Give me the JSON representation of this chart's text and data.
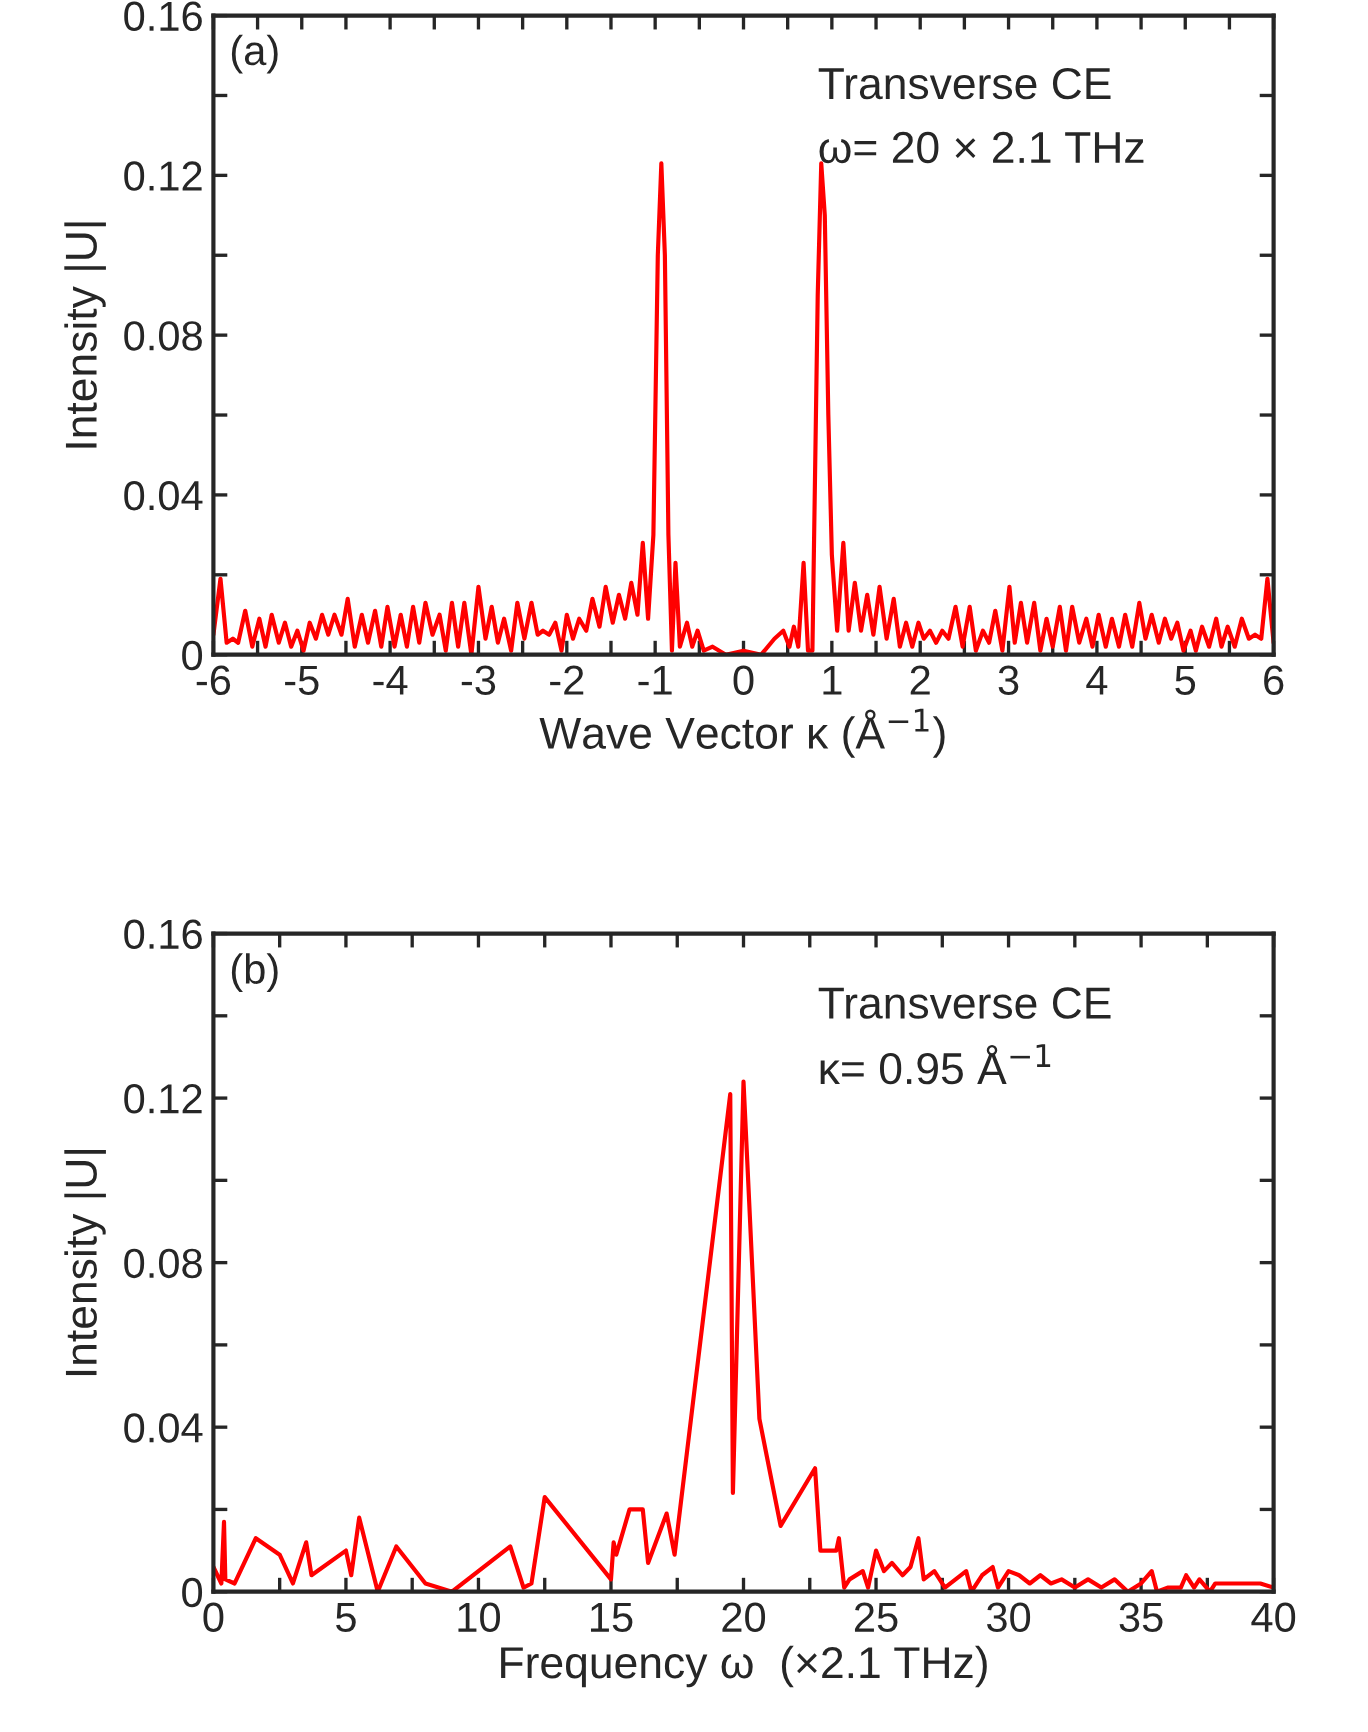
{
  "chart_data": [
    {
      "type": "line",
      "xlabel": "Wave Vector κ (Å$^{−1}$)",
      "ylabel": "Intensity |U|",
      "annotations": [
        "(a)",
        "Transverse CE",
        "ω= 20 × 2.1 THz"
      ],
      "xlim": [
        -6,
        6
      ],
      "ylim": [
        0,
        0.16
      ],
      "xticks": [
        -6,
        {
          "value": -5.5,
          "label": null
        },
        -5,
        {
          "value": -4.5,
          "label": null
        },
        -4,
        {
          "value": -3.5,
          "label": null
        },
        -3,
        {
          "value": -2.5,
          "label": null
        },
        -2,
        {
          "value": -1.5,
          "label": null
        },
        -1,
        {
          "value": -0.5,
          "label": null
        },
        0,
        {
          "value": 0.5,
          "label": null
        },
        1,
        {
          "value": 1.5,
          "label": null
        },
        2,
        {
          "value": 2.5,
          "label": null
        },
        3,
        {
          "value": 3.5,
          "label": null
        },
        4,
        {
          "value": 4.5,
          "label": null
        },
        5,
        {
          "value": 5.5,
          "label": null
        },
        6
      ],
      "yticks": [
        0,
        {
          "value": 0.02,
          "label": null
        },
        0.04,
        {
          "value": 0.06,
          "label": null
        },
        0.08,
        {
          "value": 0.1,
          "label": null
        },
        0.12,
        {
          "value": 0.14,
          "label": null
        },
        0.16
      ],
      "grid": false,
      "legend": false,
      "marker": "none",
      "line_style": "solid",
      "series": [
        {
          "color": "#ff0000",
          "x": [
            -6,
            -5.92,
            -5.85,
            -5.78,
            -5.72,
            -5.64,
            -5.56,
            -5.48,
            -5.41,
            -5.34,
            -5.26,
            -5.19,
            -5.12,
            -5.05,
            -4.98,
            -4.91,
            -4.84,
            -4.77,
            -4.7,
            -4.63,
            -4.55,
            -4.48,
            -4.4,
            -4.32,
            -4.25,
            -4.17,
            -4.1,
            -4.03,
            -3.95,
            -3.88,
            -3.81,
            -3.74,
            -3.67,
            -3.6,
            -3.52,
            -3.44,
            -3.37,
            -3.3,
            -3.23,
            -3.16,
            -3.08,
            -3.0,
            -2.92,
            -2.85,
            -2.78,
            -2.71,
            -2.63,
            -2.56,
            -2.48,
            -2.4,
            -2.33,
            -2.27,
            -2.2,
            -2.13,
            -2.06,
            -2.0,
            -1.93,
            -1.86,
            -1.78,
            -1.71,
            -1.63,
            -1.56,
            -1.48,
            -1.41,
            -1.34,
            -1.27,
            -1.2,
            -1.14,
            -1.08,
            -1.02,
            -0.97,
            -0.93,
            -0.89,
            -0.85,
            -0.81,
            -0.77,
            -0.72,
            -0.64,
            -0.58,
            -0.52,
            -0.45,
            -0.35,
            -0.2,
            0,
            0.2,
            0.35,
            0.45,
            0.52,
            0.57,
            0.62,
            0.68,
            0.73,
            0.78,
            0.84,
            0.88,
            0.92,
            0.96,
            1.0,
            1.06,
            1.13,
            1.19,
            1.26,
            1.33,
            1.4,
            1.47,
            1.54,
            1.62,
            1.7,
            1.77,
            1.84,
            1.91,
            1.98,
            2.04,
            2.11,
            2.18,
            2.25,
            2.32,
            2.4,
            2.48,
            2.56,
            2.63,
            2.71,
            2.78,
            2.85,
            2.93,
            3.01,
            3.07,
            3.14,
            3.21,
            3.29,
            3.36,
            3.43,
            3.5,
            3.58,
            3.65,
            3.72,
            3.8,
            3.88,
            3.95,
            4.02,
            4.1,
            4.17,
            4.25,
            4.32,
            4.4,
            4.48,
            4.55,
            4.62,
            4.7,
            4.77,
            4.84,
            4.91,
            4.98,
            5.06,
            5.12,
            5.19,
            5.27,
            5.35,
            5.41,
            5.48,
            5.56,
            5.64,
            5.72,
            5.79,
            5.86,
            5.93,
            6.0
          ],
          "values": [
            0.005,
            0.019,
            0.003,
            0.004,
            0.003,
            0.011,
            0.002,
            0.009,
            0.002,
            0.01,
            0.003,
            0.008,
            0.002,
            0.006,
            0.001,
            0.008,
            0.004,
            0.01,
            0.005,
            0.01,
            0.005,
            0.014,
            0.002,
            0.01,
            0.003,
            0.011,
            0.002,
            0.012,
            0.002,
            0.01,
            0.002,
            0.012,
            0.003,
            0.013,
            0.005,
            0.01,
            0.001,
            0.013,
            0.002,
            0.013,
            0.0,
            0.017,
            0.004,
            0.012,
            0.003,
            0.009,
            0.001,
            0.013,
            0.004,
            0.013,
            0.005,
            0.006,
            0.005,
            0.008,
            0.001,
            0.01,
            0.004,
            0.009,
            0.006,
            0.014,
            0.007,
            0.017,
            0.008,
            0.015,
            0.009,
            0.018,
            0.01,
            0.028,
            0.009,
            0.03,
            0.1,
            0.123,
            0.1,
            0.03,
            0.001,
            0.023,
            0.002,
            0.008,
            0.002,
            0.006,
            0.001,
            0.002,
            0.0,
            0.001,
            0.0,
            0.004,
            0.006,
            0.002,
            0.007,
            0.002,
            0.023,
            0.001,
            0.001,
            0.09,
            0.123,
            0.11,
            0.06,
            0.025,
            0.006,
            0.028,
            0.006,
            0.018,
            0.006,
            0.015,
            0.005,
            0.017,
            0.004,
            0.014,
            0.002,
            0.008,
            0.002,
            0.008,
            0.004,
            0.006,
            0.003,
            0.006,
            0.004,
            0.012,
            0.002,
            0.012,
            0.001,
            0.006,
            0.003,
            0.011,
            0.001,
            0.017,
            0.003,
            0.013,
            0.003,
            0.013,
            0.001,
            0.009,
            0.002,
            0.012,
            0.001,
            0.012,
            0.003,
            0.009,
            0.002,
            0.01,
            0.002,
            0.009,
            0.002,
            0.01,
            0.002,
            0.013,
            0.004,
            0.01,
            0.003,
            0.009,
            0.004,
            0.008,
            0.001,
            0.006,
            0.001,
            0.007,
            0.002,
            0.009,
            0.002,
            0.007,
            0.002,
            0.009,
            0.004,
            0.005,
            0.004,
            0.019,
            0.003
          ]
        }
      ]
    },
    {
      "type": "line",
      "xlabel": "Frequency ω  (×2.1 THz)",
      "ylabel": "Intensity |U|",
      "annotations": [
        "(b)",
        "Transverse CE",
        "κ= 0.95 Å$^{−1}$"
      ],
      "xlim": [
        0,
        40
      ],
      "ylim": [
        0,
        0.16
      ],
      "xticks": [
        0,
        {
          "value": 2.5,
          "label": null
        },
        5,
        {
          "value": 7.5,
          "label": null
        },
        10,
        {
          "value": 12.5,
          "label": null
        },
        15,
        {
          "value": 17.5,
          "label": null
        },
        20,
        {
          "value": 22.5,
          "label": null
        },
        25,
        {
          "value": 27.5,
          "label": null
        },
        30,
        {
          "value": 32.5,
          "label": null
        },
        35,
        {
          "value": 37.5,
          "label": null
        },
        40
      ],
      "yticks": [
        0,
        {
          "value": 0.02,
          "label": null
        },
        0.04,
        {
          "value": 0.06,
          "label": null
        },
        0.08,
        {
          "value": 0.1,
          "label": null
        },
        0.12,
        {
          "value": 0.14,
          "label": null
        },
        0.16
      ],
      "grid": false,
      "legend": false,
      "marker": "none",
      "line_style": "solid",
      "series": [
        {
          "color": "#ff0000",
          "x": [
            0,
            0.3,
            0.4,
            0.45,
            0.8,
            1.6,
            2.5,
            3.0,
            3.5,
            3.7,
            5.0,
            5.2,
            5.5,
            6.2,
            6.9,
            8.0,
            9.0,
            11.2,
            11.7,
            12.0,
            12.5,
            15.0,
            15.1,
            15.2,
            15.7,
            16.2,
            16.4,
            17.1,
            17.4,
            19.5,
            19.6,
            20.0,
            20.6,
            21.4,
            22.7,
            22.9,
            23.5,
            23.6,
            23.8,
            24.0,
            24.5,
            24.7,
            25.0,
            25.3,
            25.6,
            26.0,
            26.3,
            26.6,
            26.8,
            27.2,
            27.6,
            28.0,
            28.4,
            28.6,
            29.0,
            29.4,
            29.6,
            30.0,
            30.4,
            30.8,
            31.2,
            31.6,
            32.0,
            32.5,
            33.0,
            33.5,
            34.0,
            34.5,
            35.0,
            35.4,
            35.6,
            36.0,
            36.5,
            36.7,
            37.0,
            37.2,
            37.6,
            37.8,
            39.5,
            40.0
          ],
          "values": [
            0.006,
            0.002,
            0.017,
            0.003,
            0.002,
            0.013,
            0.009,
            0.002,
            0.012,
            0.004,
            0.01,
            0.004,
            0.018,
            0.0,
            0.011,
            0.002,
            0.0,
            0.011,
            0.001,
            0.002,
            0.023,
            0.003,
            0.012,
            0.009,
            0.02,
            0.02,
            0.007,
            0.019,
            0.009,
            0.121,
            0.024,
            0.124,
            0.042,
            0.016,
            0.03,
            0.01,
            0.01,
            0.013,
            0.001,
            0.003,
            0.005,
            0.001,
            0.01,
            0.005,
            0.007,
            0.004,
            0.006,
            0.013,
            0.003,
            0.005,
            0.001,
            0.003,
            0.005,
            0.0,
            0.004,
            0.006,
            0.001,
            0.005,
            0.004,
            0.002,
            0.004,
            0.002,
            0.003,
            0.001,
            0.003,
            0.001,
            0.003,
            0.0,
            0.002,
            0.005,
            0.0,
            0.001,
            0.001,
            0.004,
            0.001,
            0.003,
            0.0,
            0.002,
            0.002,
            0.001
          ]
        }
      ]
    }
  ]
}
